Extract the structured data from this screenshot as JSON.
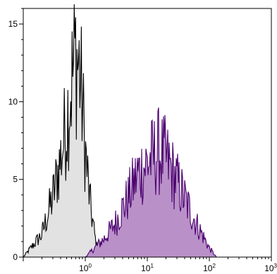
{
  "chart_data": {
    "type": "area",
    "title": "",
    "xlabel": "",
    "ylabel": "",
    "x_scale": "log",
    "xlim": [
      0.1,
      1000
    ],
    "ylim": [
      0,
      16
    ],
    "grid": false,
    "legend": "none",
    "x_tick_labels": [
      {
        "value": 1,
        "base": "10",
        "exp": "0"
      },
      {
        "value": 10,
        "base": "10",
        "exp": "1"
      },
      {
        "value": 100,
        "base": "10",
        "exp": "2"
      },
      {
        "value": 1000,
        "base": "10",
        "exp": "3"
      }
    ],
    "y_ticks": [
      0,
      5,
      10,
      15
    ],
    "y_tick_labels": [
      "0",
      "5",
      "10",
      "15"
    ],
    "series": [
      {
        "fill": "#e2e2e2",
        "stroke": "#000000",
        "x": [
          0.1,
          0.2,
          0.3,
          0.4,
          0.5,
          0.6,
          0.7,
          0.8,
          0.9,
          1.0,
          1.2,
          1.5,
          2.0
        ],
        "y": [
          0,
          1.5,
          4,
          6.5,
          9,
          11.5,
          13.5,
          12.5,
          10,
          7,
          3.5,
          0.8,
          0
        ]
      },
      {
        "fill": "#b991c8",
        "stroke": "#4a006e",
        "x": [
          1,
          2,
          3,
          5,
          7,
          10,
          15,
          20,
          30,
          50,
          70,
          100,
          130
        ],
        "y": [
          0,
          1.2,
          2.2,
          4,
          5.5,
          6.2,
          7,
          6.5,
          5,
          3,
          1.8,
          0.6,
          0
        ]
      }
    ]
  }
}
